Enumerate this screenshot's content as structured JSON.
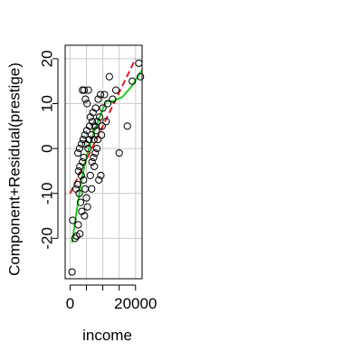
{
  "chart_data": {
    "type": "scatter",
    "title": "",
    "xlabel": "income",
    "ylabel": "Component+Residual(prestige)",
    "xlim": [
      -1500,
      22000
    ],
    "ylim": [
      -29,
      23
    ],
    "x_ticks": [
      0,
      20000
    ],
    "x_tick_labels": [
      "0",
      "20000"
    ],
    "x_minor_grid": [
      0,
      5000,
      10000,
      15000,
      20000
    ],
    "y_ticks": [
      -20,
      -10,
      0,
      10,
      20
    ],
    "y_tick_labels": [
      "-20",
      "-10",
      "0",
      "10",
      "20"
    ],
    "grid": true,
    "colors": {
      "points": "#000000",
      "linear_fit": "#e41a1c",
      "smooth_fit": "#22cc22",
      "grid": "#cccccc"
    },
    "linear_fit": {
      "name": "",
      "x": [
        0,
        20000
      ],
      "y": [
        -10,
        20
      ]
    },
    "smooth_fit": {
      "name": "",
      "x": [
        600,
        2000,
        3500,
        5000,
        7000,
        9000,
        11000,
        13000,
        16000,
        19000,
        22000
      ],
      "y": [
        -21,
        -14,
        -7,
        -2,
        3,
        7,
        10.5,
        10.5,
        11.5,
        14,
        17.5
      ]
    },
    "points": [
      {
        "x": 600,
        "y": -27.5
      },
      {
        "x": 800,
        "y": -16
      },
      {
        "x": 1500,
        "y": -20
      },
      {
        "x": 2000,
        "y": -19.5
      },
      {
        "x": 2500,
        "y": -17
      },
      {
        "x": 3000,
        "y": -19
      },
      {
        "x": 1800,
        "y": -9
      },
      {
        "x": 2200,
        "y": -8
      },
      {
        "x": 2800,
        "y": -10
      },
      {
        "x": 3200,
        "y": -12
      },
      {
        "x": 2600,
        "y": -5
      },
      {
        "x": 3000,
        "y": -4
      },
      {
        "x": 3400,
        "y": -6
      },
      {
        "x": 3800,
        "y": -3
      },
      {
        "x": 2400,
        "y": -1
      },
      {
        "x": 2900,
        "y": 0
      },
      {
        "x": 3500,
        "y": 1
      },
      {
        "x": 4000,
        "y": 2
      },
      {
        "x": 4200,
        "y": -2
      },
      {
        "x": 4500,
        "y": 3
      },
      {
        "x": 4800,
        "y": 1
      },
      {
        "x": 5100,
        "y": 4
      },
      {
        "x": 5500,
        "y": 0
      },
      {
        "x": 5800,
        "y": 2
      },
      {
        "x": 6000,
        "y": 5
      },
      {
        "x": 6200,
        "y": 7
      },
      {
        "x": 6500,
        "y": 3
      },
      {
        "x": 6800,
        "y": 6
      },
      {
        "x": 7000,
        "y": 8
      },
      {
        "x": 7300,
        "y": 2
      },
      {
        "x": 7500,
        "y": 5
      },
      {
        "x": 7800,
        "y": 9
      },
      {
        "x": 8000,
        "y": 4
      },
      {
        "x": 8300,
        "y": 6
      },
      {
        "x": 8600,
        "y": 11
      },
      {
        "x": 9000,
        "y": 7
      },
      {
        "x": 9300,
        "y": 12
      },
      {
        "x": 9600,
        "y": 3
      },
      {
        "x": 10000,
        "y": 9
      },
      {
        "x": 10500,
        "y": 12
      },
      {
        "x": 11000,
        "y": 6
      },
      {
        "x": 11500,
        "y": 10
      },
      {
        "x": 12000,
        "y": 16
      },
      {
        "x": 13000,
        "y": 11
      },
      {
        "x": 14000,
        "y": 13
      },
      {
        "x": 15000,
        "y": -1
      },
      {
        "x": 17500,
        "y": 5
      },
      {
        "x": 19000,
        "y": 15
      },
      {
        "x": 21000,
        "y": 19
      },
      {
        "x": 21500,
        "y": 16
      },
      {
        "x": 3800,
        "y": 13
      },
      {
        "x": 4300,
        "y": 13
      },
      {
        "x": 4700,
        "y": 11
      },
      {
        "x": 5200,
        "y": 10
      },
      {
        "x": 5600,
        "y": 13
      },
      {
        "x": 4100,
        "y": -7
      },
      {
        "x": 4600,
        "y": -9
      },
      {
        "x": 5000,
        "y": -11
      },
      {
        "x": 6200,
        "y": -6
      },
      {
        "x": 6700,
        "y": -3
      },
      {
        "x": 7200,
        "y": -2
      },
      {
        "x": 7700,
        "y": -1
      },
      {
        "x": 8200,
        "y": 0
      },
      {
        "x": 8800,
        "y": -7
      },
      {
        "x": 9400,
        "y": -6
      },
      {
        "x": 3600,
        "y": -14
      },
      {
        "x": 4400,
        "y": -15
      },
      {
        "x": 5300,
        "y": -13
      },
      {
        "x": 6600,
        "y": -9
      },
      {
        "x": 7400,
        "y": -4
      },
      {
        "x": 8500,
        "y": 2
      },
      {
        "x": 9800,
        "y": 5
      }
    ]
  }
}
